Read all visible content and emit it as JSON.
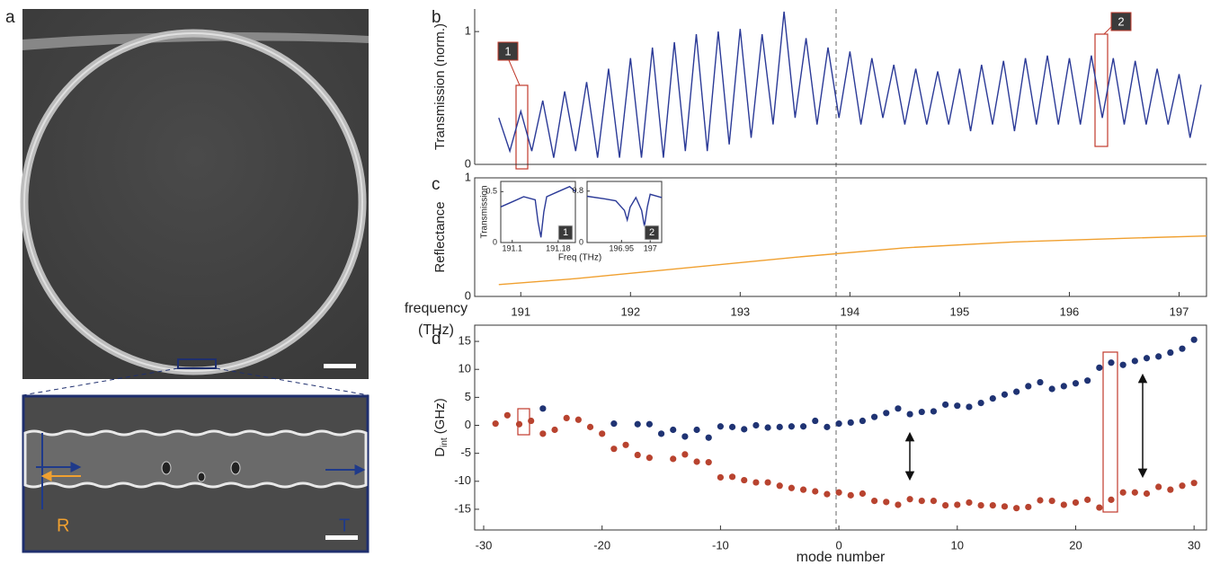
{
  "figure": {
    "panel_labels": [
      "a",
      "b",
      "c",
      "d"
    ]
  },
  "image_panel": {
    "reflection_label": "R",
    "transmission_label": "T"
  },
  "annotations": {
    "box_labels": [
      "1",
      "2"
    ]
  },
  "chart_data": [
    {
      "type": "line",
      "ylabel": "Transmission (norm.)",
      "color": "#2b3a97",
      "xlim": [
        190.58,
        197.25
      ],
      "ylim": [
        0,
        1.17
      ],
      "yticks": [
        0,
        1
      ],
      "x": [
        190.8,
        190.9,
        191.0,
        191.1,
        191.2,
        191.3,
        191.4,
        191.5,
        191.6,
        191.7,
        191.8,
        191.9,
        192.0,
        192.1,
        192.2,
        192.3,
        192.4,
        192.5,
        192.6,
        192.7,
        192.8,
        192.9,
        193.0,
        193.1,
        193.2,
        193.3,
        193.4,
        193.5,
        193.6,
        193.7,
        193.8,
        193.9,
        194.0,
        194.1,
        194.2,
        194.3,
        194.4,
        194.5,
        194.6,
        194.7,
        194.8,
        194.9,
        195.0,
        195.1,
        195.2,
        195.3,
        195.4,
        195.5,
        195.6,
        195.7,
        195.8,
        195.9,
        196.0,
        196.1,
        196.2,
        196.3,
        196.4,
        196.5,
        196.6,
        196.7,
        196.8,
        196.9,
        197.0,
        197.1,
        197.2
      ],
      "values": [
        0.35,
        0.1,
        0.4,
        0.1,
        0.48,
        0.05,
        0.55,
        0.1,
        0.62,
        0.05,
        0.72,
        0.05,
        0.8,
        0.05,
        0.88,
        0.05,
        0.92,
        0.1,
        0.98,
        0.1,
        1.0,
        0.15,
        1.02,
        0.2,
        0.98,
        0.3,
        1.15,
        0.35,
        0.95,
        0.3,
        0.88,
        0.35,
        0.85,
        0.3,
        0.8,
        0.35,
        0.75,
        0.3,
        0.72,
        0.3,
        0.7,
        0.3,
        0.72,
        0.25,
        0.75,
        0.3,
        0.78,
        0.25,
        0.8,
        0.3,
        0.82,
        0.3,
        0.8,
        0.3,
        0.82,
        0.35,
        0.8,
        0.3,
        0.78,
        0.3,
        0.72,
        0.3,
        0.68,
        0.2,
        0.6
      ]
    },
    {
      "type": "line",
      "ylabel": "Reflectance",
      "xlabel_lines": [
        "frequency",
        "(THz)"
      ],
      "color": "#f0a030",
      "xlim": [
        190.58,
        197.25
      ],
      "ylim": [
        0,
        1
      ],
      "yticks": [
        0,
        1
      ],
      "xticks": [
        191,
        192,
        193,
        194,
        195,
        196,
        197
      ],
      "x": [
        190.8,
        191.5,
        192.5,
        193.5,
        194.5,
        195.5,
        196.5,
        197.25
      ],
      "values": [
        0.1,
        0.15,
        0.24,
        0.33,
        0.41,
        0.46,
        0.49,
        0.51
      ]
    },
    {
      "type": "line",
      "ylabel": "Transmission",
      "color": "#2b3a97",
      "xlim": [
        191.08,
        191.21
      ],
      "ylim": [
        0,
        0.6
      ],
      "yticks": [
        0,
        0.5
      ],
      "xticks": [
        191.1,
        191.18
      ],
      "x": [
        191.08,
        191.1,
        191.12,
        191.14,
        191.145,
        191.15,
        191.155,
        191.16,
        191.18,
        191.2,
        191.21
      ],
      "values": [
        0.35,
        0.4,
        0.45,
        0.42,
        0.2,
        0.05,
        0.3,
        0.45,
        0.5,
        0.55,
        0.5
      ]
    },
    {
      "type": "line",
      "xlabel": "Freq (THz)",
      "color": "#2b3a97",
      "xlim": [
        196.89,
        197.02
      ],
      "ylim": [
        0,
        0.95
      ],
      "yticks": [
        0,
        0.8
      ],
      "xticks": [
        196.95,
        197
      ],
      "x": [
        196.89,
        196.92,
        196.94,
        196.955,
        196.96,
        196.965,
        196.975,
        196.985,
        196.99,
        196.995,
        197.0,
        197.02
      ],
      "values": [
        0.72,
        0.68,
        0.65,
        0.5,
        0.35,
        0.55,
        0.7,
        0.5,
        0.25,
        0.55,
        0.75,
        0.7
      ]
    },
    {
      "type": "scatter",
      "xlabel": "mode number",
      "ylabel_parts": [
        "D",
        "int",
        "(GHz)"
      ],
      "xlim": [
        -30.76,
        31.05
      ],
      "ylim": [
        -18.7,
        17.9
      ],
      "xticks": [
        -30,
        -20,
        -10,
        0,
        10,
        20,
        30
      ],
      "yticks": [
        -15,
        -10,
        -5,
        0,
        5,
        10,
        15
      ],
      "series": [
        {
          "color": "#1f3373",
          "x": [
            -25,
            -19,
            -17,
            -16,
            -15,
            -14,
            -13,
            -12,
            -11,
            -10,
            -9,
            -8,
            -7,
            -6,
            -5,
            -4,
            -3,
            -2,
            -1,
            0,
            1,
            2,
            3,
            4,
            5,
            6,
            7,
            8,
            9,
            10,
            11,
            12,
            13,
            14,
            15,
            16,
            17,
            18,
            19,
            20,
            21,
            22,
            23,
            24,
            25,
            26,
            27,
            28,
            29,
            30
          ],
          "values": [
            3,
            0.3,
            0.2,
            0.2,
            -1.5,
            -0.8,
            -2,
            -0.8,
            -2.2,
            -0.2,
            -0.3,
            -0.7,
            0,
            -0.4,
            -0.3,
            -0.2,
            -0.2,
            0.8,
            -0.3,
            0.3,
            0.5,
            0.8,
            1.5,
            2.2,
            3,
            2,
            2.4,
            2.5,
            3.7,
            3.5,
            3.3,
            4,
            4.8,
            5.5,
            6,
            7,
            7.7,
            6.5,
            7,
            7.5,
            8,
            10.3,
            11.2,
            10.8,
            11.5,
            12,
            12.3,
            13,
            13.7,
            15.3
          ]
        },
        {
          "color": "#b8432f",
          "x": [
            -29,
            -28,
            -27,
            -26,
            -25,
            -24,
            -23,
            -22,
            -21,
            -20,
            -19,
            -18,
            -17,
            -16,
            -14,
            -13,
            -12,
            -11,
            -10,
            -9,
            -8,
            -7,
            -6,
            -5,
            -4,
            -3,
            -2,
            -1,
            0,
            1,
            2,
            3,
            4,
            5,
            6,
            7,
            8,
            9,
            10,
            11,
            12,
            13,
            14,
            15,
            16,
            17,
            18,
            19,
            20,
            21,
            22,
            23,
            24,
            25,
            26,
            27,
            28,
            29,
            30
          ],
          "values": [
            0.3,
            1.8,
            0.2,
            0.8,
            -1.5,
            -0.8,
            1.3,
            1.0,
            -0.3,
            -1.5,
            -4.2,
            -3.5,
            -5.3,
            -5.8,
            -6,
            -5.2,
            -6.5,
            -6.6,
            -9.3,
            -9.2,
            -9.8,
            -10.2,
            -10.2,
            -10.8,
            -11.2,
            -11.5,
            -11.8,
            -12.3,
            -12,
            -12.5,
            -12.2,
            -13.5,
            -13.7,
            -14.2,
            -13.2,
            -13.5,
            -13.5,
            -14.3,
            -14.2,
            -13.8,
            -14.3,
            -14.3,
            -14.5,
            -14.8,
            -14.6,
            -13.4,
            -13.5,
            -14.2,
            -13.8,
            -13.3,
            -14.7,
            -13.3,
            -12,
            -12,
            -12.2,
            -11,
            -11.5,
            -10.8,
            -10.3
          ]
        }
      ]
    }
  ]
}
